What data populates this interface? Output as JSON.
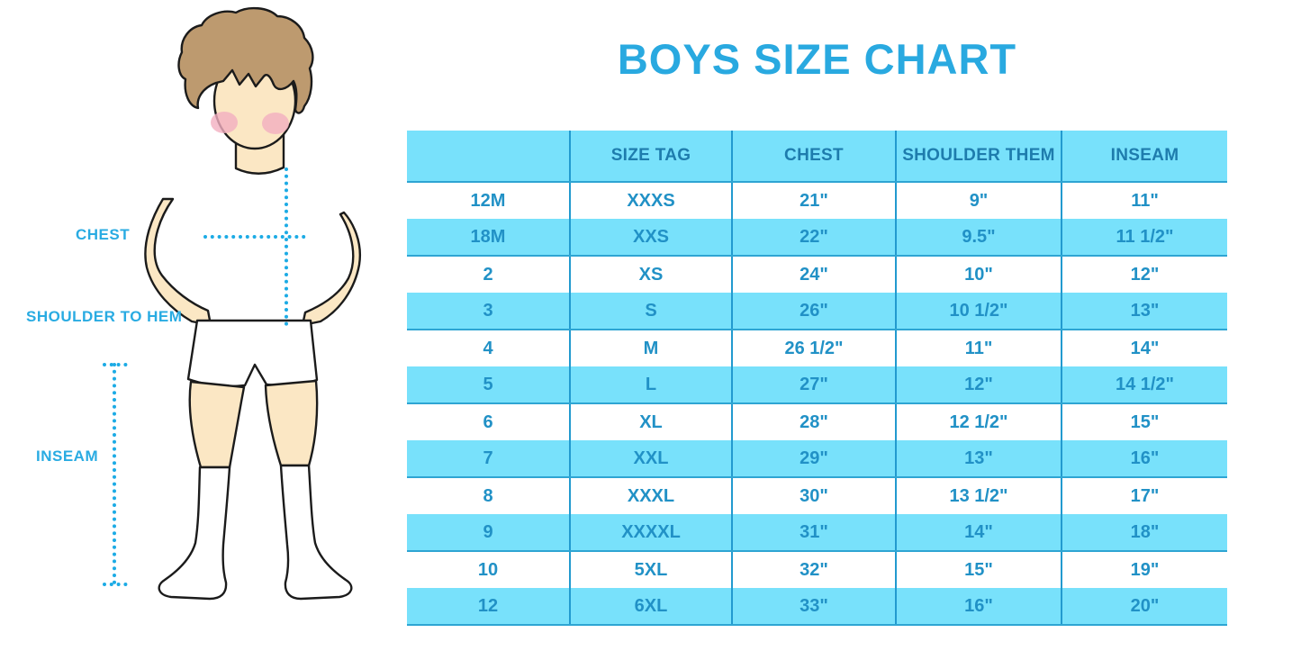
{
  "title": "BOYS SIZE CHART",
  "figure": {
    "labels": {
      "chest": "CHEST",
      "shoulder_to_hem": "SHOULDER TO HEM",
      "inseam": "INSEAM"
    }
  },
  "colors": {
    "title_blue": "#29A9E0",
    "label_blue": "#29ABE2",
    "row_band": "#78E1FB",
    "divider": "#229ACF",
    "header_text": "#1E7CAD",
    "cell_text": "#2191C6",
    "dotted_line": "#1CABE5",
    "skin": "#FBE7C4",
    "hair": "#BD9A6F"
  },
  "chart_data": {
    "type": "table",
    "title": "BOYS SIZE CHART",
    "columns": [
      "",
      "SIZE TAG",
      "CHEST",
      "SHOULDER THEM",
      "INSEAM"
    ],
    "rows": [
      [
        "12M",
        "XXXS",
        "21\"",
        "9\"",
        "11\""
      ],
      [
        "18M",
        "XXS",
        "22\"",
        "9.5\"",
        "11 1/2\""
      ],
      [
        "2",
        "XS",
        "24\"",
        "10\"",
        "12\""
      ],
      [
        "3",
        "S",
        "26\"",
        "10 1/2\"",
        "13\""
      ],
      [
        "4",
        "M",
        "26 1/2\"",
        "11\"",
        "14\""
      ],
      [
        "5",
        "L",
        "27\"",
        "12\"",
        "14 1/2\""
      ],
      [
        "6",
        "XL",
        "28\"",
        "12 1/2\"",
        "15\""
      ],
      [
        "7",
        "XXL",
        "29\"",
        "13\"",
        "16\""
      ],
      [
        "8",
        "XXXL",
        "30\"",
        "13 1/2\"",
        "17\""
      ],
      [
        "9",
        "XXXXL",
        "31\"",
        "14\"",
        "18\""
      ],
      [
        "10",
        "5XL",
        "32\"",
        "15\"",
        "19\""
      ],
      [
        "12",
        "6XL",
        "33\"",
        "16\"",
        "20\""
      ]
    ],
    "layout": {
      "shaded_rows": "alternating, header and even rows light blue",
      "grid": "vertical column dividers only"
    }
  }
}
